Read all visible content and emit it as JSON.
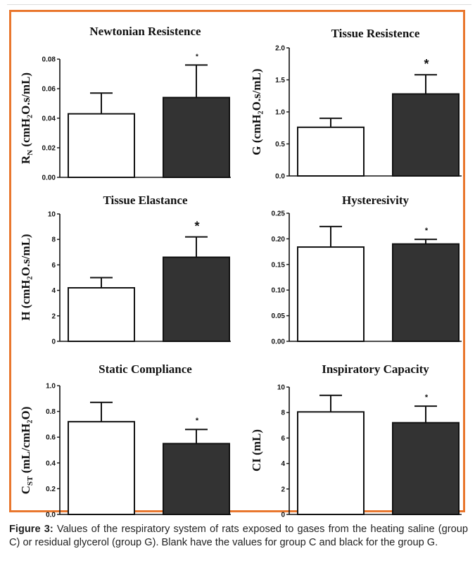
{
  "caption": {
    "label": "Figure 3:",
    "text": " Values of the respiratory system of rats exposed to gases from the heating saline (group C) or residual glycerol (group G). Blank have the values for group C and black for the group G."
  },
  "colors": {
    "frame": "#e9772e",
    "group_c": "#ffffff",
    "group_g": "#333333",
    "axis": "#111111"
  },
  "chart_data": [
    {
      "type": "bar",
      "title": "Newtonian Resistence",
      "ylabel_main": "R",
      "ylabel_sub": "N",
      "ylabel_rest": " (cmH₂O.s/mL)",
      "categories": [
        "C",
        "G"
      ],
      "values": [
        0.043,
        0.054
      ],
      "errors": [
        0.014,
        0.022
      ],
      "ylim": [
        0,
        0.08
      ],
      "yticks": [
        "0.00",
        "0.02",
        "0.04",
        "0.06",
        "0.08"
      ],
      "significance": "*",
      "ast_size": 10
    },
    {
      "type": "bar",
      "title": "Tissue Resistence",
      "ylabel_main": "G (cmH₂O.s/mL)",
      "ylabel_sub": "",
      "ylabel_rest": "",
      "categories": [
        "C",
        "G"
      ],
      "values": [
        0.76,
        1.28
      ],
      "errors": [
        0.14,
        0.3
      ],
      "ylim": [
        0,
        2.0
      ],
      "yticks": [
        "0.0",
        "0.5",
        "1.0",
        "1.5",
        "2.0"
      ],
      "significance": "*",
      "ast_size": 18
    },
    {
      "type": "bar",
      "title": "Tissue Elastance",
      "ylabel_main": "H (cmH₂O.s/mL)",
      "ylabel_sub": "",
      "ylabel_rest": "",
      "categories": [
        "C",
        "G"
      ],
      "values": [
        4.2,
        6.6
      ],
      "errors": [
        0.8,
        1.6
      ],
      "ylim": [
        0,
        10
      ],
      "yticks": [
        "0",
        "2",
        "4",
        "6",
        "8",
        "10"
      ],
      "significance": "*",
      "ast_size": 18
    },
    {
      "type": "bar",
      "title": "Hysteresivity",
      "ylabel_main": "",
      "ylabel_sub": "",
      "ylabel_rest": "",
      "categories": [
        "C",
        "G"
      ],
      "values": [
        0.184,
        0.19
      ],
      "errors": [
        0.04,
        0.009
      ],
      "ylim": [
        0,
        0.25
      ],
      "yticks": [
        "0.00",
        "0.05",
        "0.10",
        "0.15",
        "0.20",
        "0.25"
      ],
      "significance": "*",
      "ast_size": 11
    },
    {
      "type": "bar",
      "title": "Static Compliance",
      "ylabel_main": "C",
      "ylabel_sub": "ST",
      "ylabel_rest": " (mL/cmH₂O)",
      "categories": [
        "C",
        "G"
      ],
      "values": [
        0.72,
        0.55
      ],
      "errors": [
        0.15,
        0.11
      ],
      "ylim": [
        0,
        1.0
      ],
      "yticks": [
        "0.0",
        "0.2",
        "0.4",
        "0.6",
        "0.8",
        "1.0"
      ],
      "significance": "*",
      "ast_size": 11
    },
    {
      "type": "bar",
      "title": "Inspiratory Capacity",
      "ylabel_main": "CI (mL)",
      "ylabel_sub": "",
      "ylabel_rest": "",
      "categories": [
        "C",
        "G"
      ],
      "values": [
        8.05,
        7.2
      ],
      "errors": [
        1.3,
        1.3
      ],
      "ylim": [
        0,
        10
      ],
      "yticks": [
        "0",
        "2",
        "4",
        "6",
        "8",
        "10"
      ],
      "significance": "*",
      "ast_size": 11
    }
  ]
}
